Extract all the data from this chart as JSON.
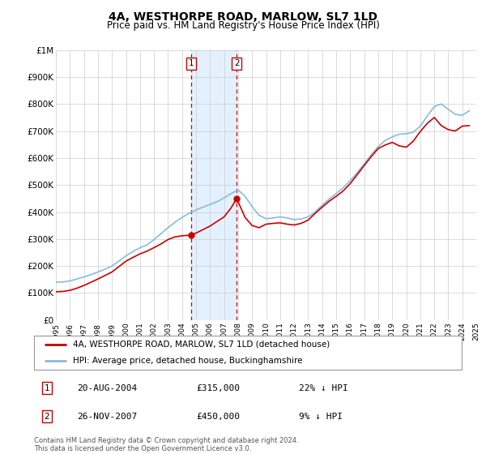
{
  "title": "4A, WESTHORPE ROAD, MARLOW, SL7 1LD",
  "subtitle": "Price paid vs. HM Land Registry's House Price Index (HPI)",
  "ylim": [
    0,
    1000000
  ],
  "xlim_start": 1995,
  "xlim_end": 2025,
  "ytick_labels": [
    "£0",
    "£100K",
    "£200K",
    "£300K",
    "£400K",
    "£500K",
    "£600K",
    "£700K",
    "£800K",
    "£900K",
    "£1M"
  ],
  "ytick_values": [
    0,
    100000,
    200000,
    300000,
    400000,
    500000,
    600000,
    700000,
    800000,
    900000,
    1000000
  ],
  "line1_color": "#cc0000",
  "line2_color": "#88bbdd",
  "line1_label": "4A, WESTHORPE ROAD, MARLOW, SL7 1LD (detached house)",
  "line2_label": "HPI: Average price, detached house, Buckinghamshire",
  "sale1_x": 2004.64,
  "sale1_y": 315000,
  "sale2_x": 2007.9,
  "sale2_y": 450000,
  "annotation1_date": "20-AUG-2004",
  "annotation1_price": "£315,000",
  "annotation1_hpi": "22% ↓ HPI",
  "annotation2_date": "26-NOV-2007",
  "annotation2_price": "£450,000",
  "annotation2_hpi": "9% ↓ HPI",
  "footer": "Contains HM Land Registry data © Crown copyright and database right 2024.\nThis data is licensed under the Open Government Licence v3.0.",
  "background_color": "#ffffff",
  "grid_color": "#cccccc",
  "title_fontsize": 10,
  "subtitle_fontsize": 8.5,
  "hpi_years": [
    1995.0,
    1995.5,
    1996.0,
    1996.5,
    1997.0,
    1997.5,
    1998.0,
    1998.5,
    1999.0,
    1999.5,
    2000.0,
    2000.5,
    2001.0,
    2001.5,
    2002.0,
    2002.5,
    2003.0,
    2003.5,
    2004.0,
    2004.5,
    2005.0,
    2005.5,
    2006.0,
    2006.5,
    2007.0,
    2007.5,
    2008.0,
    2008.5,
    2009.0,
    2009.5,
    2010.0,
    2010.5,
    2011.0,
    2011.5,
    2012.0,
    2012.5,
    2013.0,
    2013.5,
    2014.0,
    2014.5,
    2015.0,
    2015.5,
    2016.0,
    2016.5,
    2017.0,
    2017.5,
    2018.0,
    2018.5,
    2019.0,
    2019.5,
    2020.0,
    2020.5,
    2021.0,
    2021.5,
    2022.0,
    2022.5,
    2023.0,
    2023.5,
    2024.0,
    2024.5
  ],
  "hpi_values": [
    140000,
    141000,
    145000,
    152000,
    160000,
    168000,
    178000,
    188000,
    200000,
    218000,
    238000,
    254000,
    268000,
    278000,
    298000,
    320000,
    342000,
    362000,
    380000,
    395000,
    408000,
    418000,
    428000,
    438000,
    452000,
    468000,
    482000,
    458000,
    420000,
    388000,
    375000,
    378000,
    382000,
    378000,
    372000,
    374000,
    382000,
    400000,
    425000,
    448000,
    468000,
    490000,
    516000,
    546000,
    578000,
    612000,
    642000,
    665000,
    678000,
    688000,
    690000,
    695000,
    718000,
    755000,
    790000,
    800000,
    780000,
    762000,
    758000,
    775000
  ],
  "price_years": [
    1995.0,
    1995.5,
    1996.0,
    1996.5,
    1997.0,
    1997.5,
    1998.0,
    1998.5,
    1999.0,
    1999.5,
    2000.0,
    2000.5,
    2001.0,
    2001.5,
    2002.0,
    2002.5,
    2003.0,
    2003.5,
    2004.0,
    2004.5,
    2004.64,
    2005.0,
    2005.5,
    2006.0,
    2006.5,
    2007.0,
    2007.5,
    2007.9,
    2008.5,
    2009.0,
    2009.5,
    2010.0,
    2010.5,
    2011.0,
    2011.5,
    2012.0,
    2012.5,
    2013.0,
    2013.5,
    2014.0,
    2014.5,
    2015.0,
    2015.5,
    2016.0,
    2016.5,
    2017.0,
    2017.5,
    2018.0,
    2018.5,
    2019.0,
    2019.5,
    2020.0,
    2020.5,
    2021.0,
    2021.5,
    2022.0,
    2022.5,
    2023.0,
    2023.5,
    2024.0,
    2024.5
  ],
  "price_values": [
    105000,
    106000,
    110000,
    118000,
    128000,
    140000,
    152000,
    165000,
    178000,
    198000,
    218000,
    232000,
    245000,
    255000,
    268000,
    282000,
    298000,
    308000,
    312000,
    314000,
    315000,
    322000,
    335000,
    348000,
    365000,
    382000,
    415000,
    450000,
    380000,
    350000,
    342000,
    355000,
    358000,
    360000,
    355000,
    352000,
    358000,
    370000,
    395000,
    418000,
    440000,
    458000,
    478000,
    505000,
    538000,
    572000,
    605000,
    635000,
    648000,
    658000,
    645000,
    640000,
    662000,
    698000,
    728000,
    750000,
    720000,
    705000,
    700000,
    718000,
    720000
  ]
}
